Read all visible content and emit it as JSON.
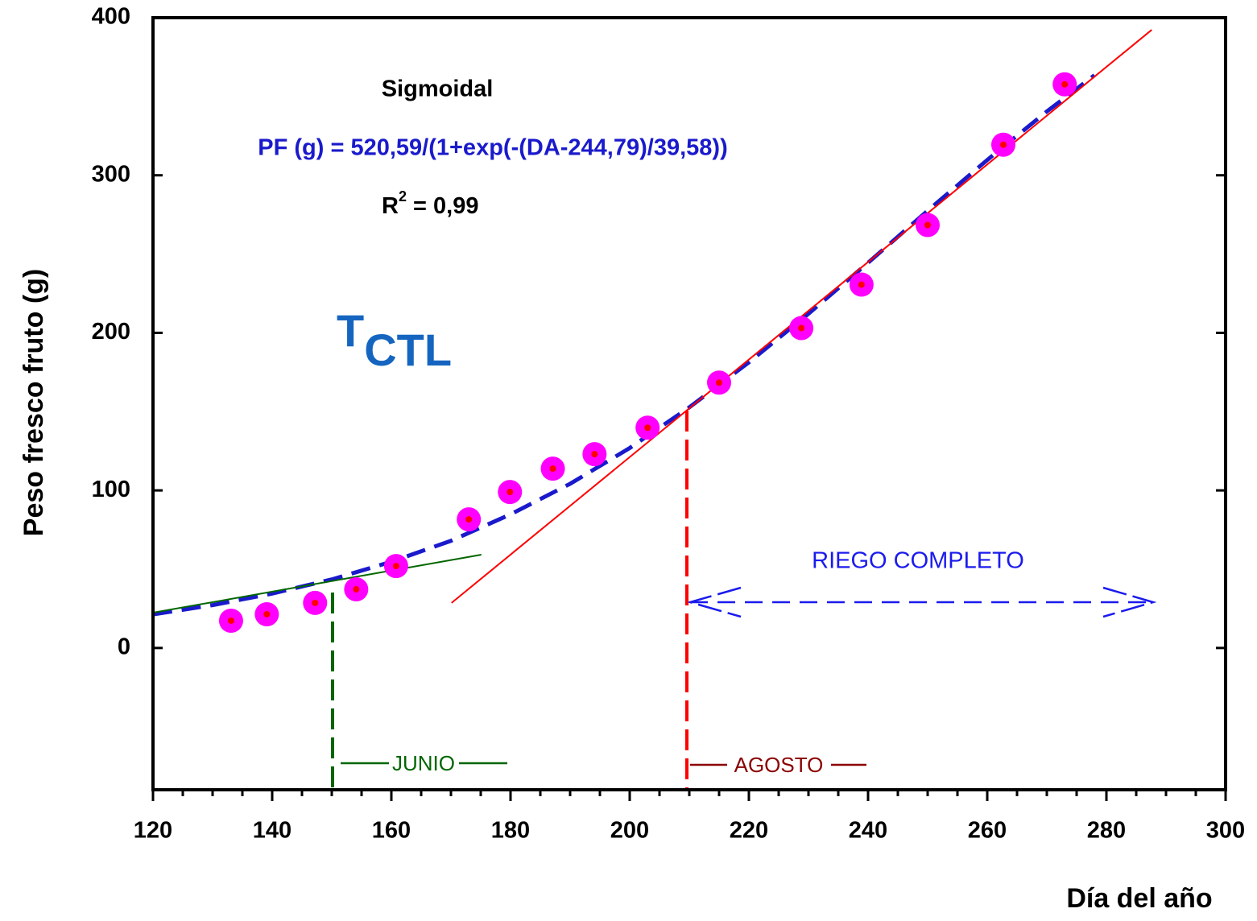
{
  "chart_data": {
    "type": "scatter",
    "x_label": "Día del año",
    "y_label": "Peso fresco fruto (g)",
    "xlim": [
      120,
      300
    ],
    "ylim": [
      -90,
      400
    ],
    "xticks": [
      120,
      140,
      160,
      180,
      200,
      220,
      240,
      260,
      280,
      300
    ],
    "xminorticks": [
      125,
      130,
      135,
      145,
      150,
      155,
      165,
      170,
      175,
      185,
      190,
      195,
      205,
      210,
      215,
      225,
      230,
      235,
      245,
      250,
      255,
      265,
      270,
      275,
      285,
      290,
      295
    ],
    "yticks": [
      0,
      100,
      200,
      300,
      400
    ],
    "annotations": {
      "model": "Sigmoidal",
      "equation": "PF (g) = 520,59/(1+exp(-(DA-244,79)/39,58))",
      "r2": {
        "base": "R",
        "sup": "2",
        "rest": " = 0,99"
      },
      "treatment": {
        "base": "T",
        "sub": "CTL"
      },
      "irrigation": "RIEGO COMPLETO",
      "june": "JUNIO",
      "august": "AGOSTO"
    },
    "series": [
      {
        "color": "#ff00ff",
        "x": [
          133.1,
          139.1,
          147.2,
          154.1,
          160.8,
          173,
          179.9,
          187.1,
          194.1,
          203,
          215,
          228.8,
          238.9,
          250,
          262.7,
          273
        ],
        "values": [
          17.3,
          21.4,
          28.6,
          37.2,
          52,
          81.6,
          99,
          113.8,
          123,
          139.8,
          168.4,
          203,
          230.6,
          268.4,
          319.4,
          357.7
        ]
      }
    ],
    "fits": [
      {
        "color": "#1a1acc",
        "dash": true,
        "x": [
          120,
          130,
          140,
          150,
          160,
          170,
          180,
          190,
          200,
          210,
          220,
          230,
          240,
          250,
          260,
          270,
          278
        ],
        "values": [
          21.3,
          27.2,
          34.5,
          43.5,
          54.7,
          68.0,
          84.8,
          104.2,
          126.9,
          152.7,
          181.3,
          212.1,
          244.5,
          277.5,
          309.7,
          340.5,
          363.5
        ]
      },
      {
        "color": "#ff0000",
        "dash": false,
        "x": [
          170.1,
          287.6
        ],
        "values": [
          28.6,
          392.3
        ]
      },
      {
        "color": "#006600",
        "dash": false,
        "x": [
          120,
          175.1
        ],
        "values": [
          22.4,
          59.2
        ]
      }
    ]
  }
}
